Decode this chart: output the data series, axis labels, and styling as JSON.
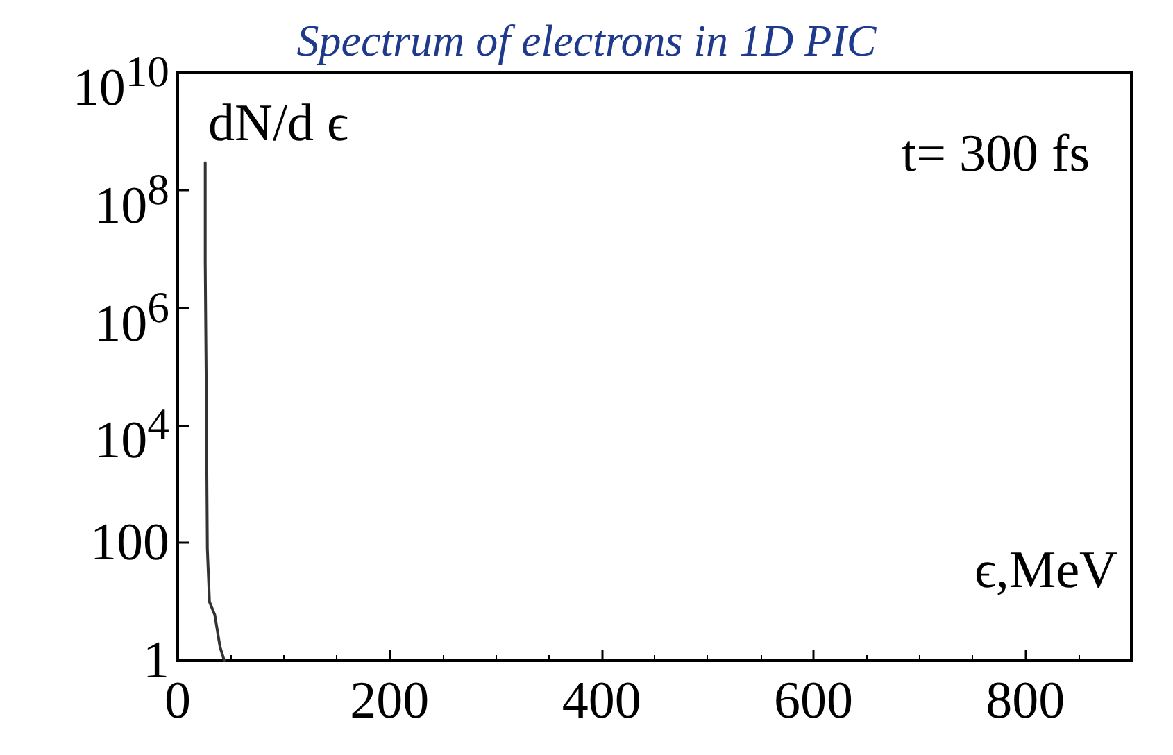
{
  "chart_data": {
    "type": "line",
    "title": "Spectrum of electrons in 1D PIC",
    "xlabel": "ϵ,MeV",
    "ylabel": "dN/d ϵ",
    "annotations": [
      "t= 300 fs"
    ],
    "x": [
      26,
      26,
      27,
      28,
      30,
      35,
      40,
      44
    ],
    "series": [
      {
        "color": "#333333",
        "values": [
          290000000,
          6000000,
          35000,
          80,
          10,
          6,
          1.7,
          1
        ]
      }
    ],
    "xlim": [
      0,
      900
    ],
    "xticks": [
      0,
      200,
      400,
      600,
      800
    ],
    "ylim": [
      1,
      10000000000
    ],
    "yticks": [
      1,
      100,
      {
        "value": 10000,
        "label": "10$^{4}$"
      },
      {
        "value": 1000000,
        "label": "10$^{6}$"
      },
      {
        "value": 100000000,
        "label": "10$^{8}$"
      },
      {
        "value": 10000000000,
        "label": "10$^{10}$"
      }
    ],
    "log": "y",
    "grid": false,
    "marker": "none",
    "line_style": "solid"
  }
}
